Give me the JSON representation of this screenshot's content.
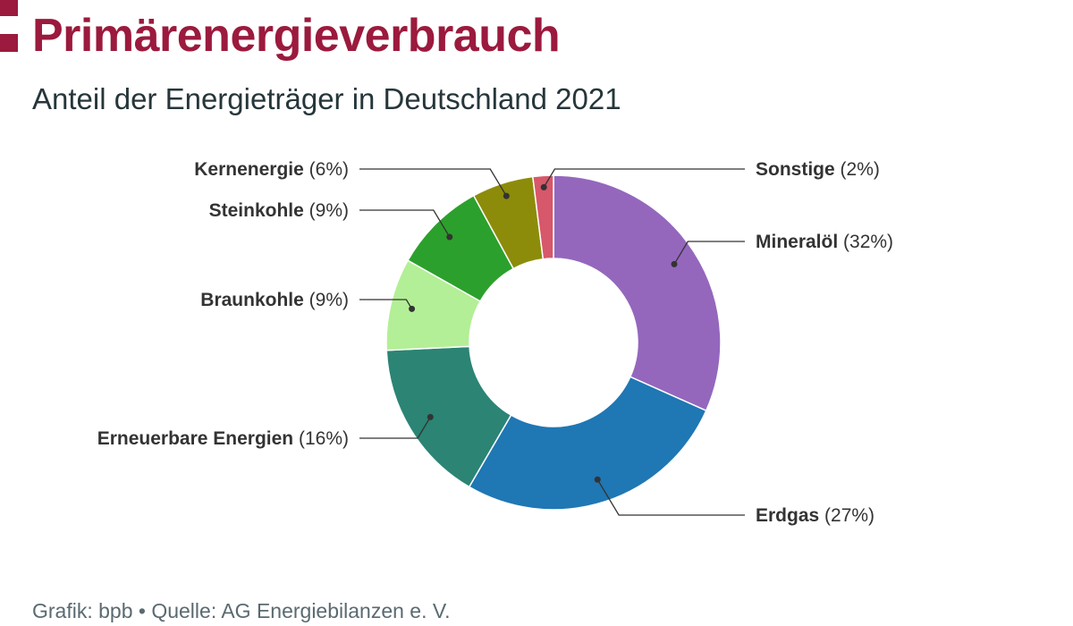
{
  "header": {
    "title": "Primärenergieverbrauch",
    "subtitle": "Anteil der Energieträger in Deutschland 2021"
  },
  "footer": {
    "source": "Grafik: bpb • Quelle: AG Energiebilanzen e. V."
  },
  "colors": {
    "title": "#9b1a3d",
    "subtitle": "#26363a"
  },
  "chart_data": {
    "type": "pie",
    "donut": true,
    "unit": "%",
    "legend": "none",
    "categories": [
      "Mineralöl",
      "Erdgas",
      "Erneuerbare Energien",
      "Braunkohle",
      "Steinkohle",
      "Kernenergie",
      "Sonstige"
    ],
    "values": [
      32,
      27,
      16,
      9,
      9,
      6,
      2
    ],
    "labels": [
      {
        "name": "Mineralöl",
        "value": "(32%)"
      },
      {
        "name": "Erdgas",
        "value": "(27%)"
      },
      {
        "name": "Erneuerbare Energien",
        "value": "(16%)"
      },
      {
        "name": "Braunkohle",
        "value": "(9%)"
      },
      {
        "name": "Steinkohle",
        "value": "(9%)"
      },
      {
        "name": "Kernenergie",
        "value": "(6%)"
      },
      {
        "name": "Sonstige",
        "value": "(2%)"
      }
    ],
    "colors": [
      "#9467bd",
      "#1f77b4",
      "#2b8474",
      "#b3ef96",
      "#2ca02c",
      "#8c8c0a",
      "#d6586a"
    ]
  }
}
